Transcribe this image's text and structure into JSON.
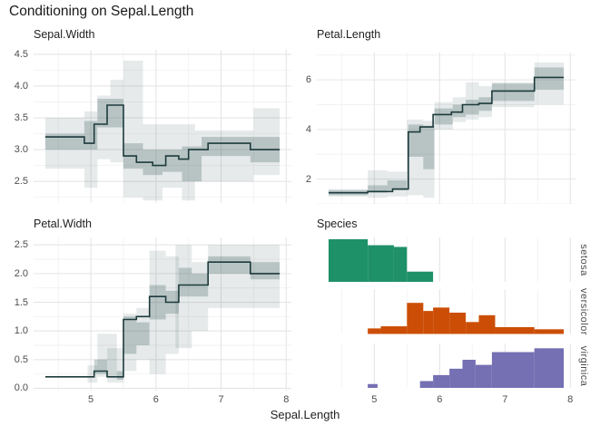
{
  "title": "Conditioning on Sepal.Length",
  "x_axis": {
    "label": "Sepal.Length",
    "domain": [
      4.12,
      8.08
    ],
    "ticks": [
      5,
      6,
      7,
      8
    ],
    "tick_labels": [
      "5",
      "6",
      "7",
      "8"
    ],
    "minor": [
      4.5,
      5.5,
      6.5,
      7.5
    ]
  },
  "colors": {
    "step_line": "#1D3A3C",
    "band_fill": "#2F5353",
    "grid_major": "#E5E5E5",
    "grid_minor": "#F2F2F2",
    "setosa": "#1E9168",
    "versicolor": "#CC4E06",
    "virginica": "#7570B3",
    "title_text": "#1A1A1A",
    "tick_text": "#4D4D4D"
  },
  "chart_data": [
    {
      "id": "sepal-width",
      "title": "Sepal.Width",
      "type": "step-band",
      "y": {
        "domain": [
          2.16,
          4.57
        ],
        "ticks": [
          2.5,
          3.0,
          3.5,
          4.0,
          4.5
        ],
        "tick_labels": [
          "2.5",
          "3.0",
          "3.5",
          "4.0",
          "4.5"
        ],
        "minor": [
          2.25,
          2.75,
          3.25,
          3.75,
          4.25
        ]
      },
      "steps": {
        "breaks": [
          4.3,
          4.9,
          5.05,
          5.25,
          5.5,
          5.7,
          5.95,
          6.15,
          6.35,
          6.5,
          6.8,
          7.45,
          7.9
        ],
        "values": [
          3.2,
          3.1,
          3.4,
          3.7,
          2.9,
          2.8,
          2.75,
          2.9,
          2.85,
          3.0,
          3.1,
          3.0
        ]
      },
      "bands_light": [
        [
          4.3,
          4.9,
          2.7,
          3.5
        ],
        [
          4.9,
          5.1,
          2.4,
          3.6
        ],
        [
          5.1,
          5.3,
          2.85,
          3.85
        ],
        [
          5.3,
          5.5,
          2.8,
          4.1
        ],
        [
          5.5,
          5.8,
          2.25,
          4.4
        ],
        [
          5.8,
          6.1,
          2.2,
          3.4
        ],
        [
          6.1,
          6.4,
          2.4,
          3.4
        ],
        [
          6.4,
          6.6,
          2.2,
          3.4
        ],
        [
          6.6,
          6.9,
          2.5,
          3.3
        ],
        [
          6.9,
          7.5,
          2.5,
          3.3
        ],
        [
          7.5,
          7.9,
          2.6,
          3.65
        ]
      ],
      "bands_dark": [
        [
          4.3,
          4.9,
          3.0,
          3.25
        ],
        [
          4.9,
          5.1,
          3.0,
          3.45
        ],
        [
          5.1,
          5.5,
          3.35,
          3.8
        ],
        [
          5.5,
          5.8,
          2.7,
          3.1
        ],
        [
          5.8,
          6.1,
          2.6,
          3.0
        ],
        [
          6.1,
          6.4,
          2.65,
          3.0
        ],
        [
          6.4,
          6.7,
          2.5,
          3.05
        ],
        [
          6.7,
          7.45,
          2.9,
          3.2
        ],
        [
          7.45,
          7.9,
          2.8,
          3.2
        ]
      ]
    },
    {
      "id": "petal-length",
      "title": "Petal.Length",
      "type": "step-band",
      "y": {
        "domain": [
          1.0,
          7.1
        ],
        "ticks": [
          2,
          4,
          6
        ],
        "tick_labels": [
          "2",
          "4",
          "6"
        ],
        "minor": [
          1,
          3,
          5,
          7
        ]
      },
      "steps": {
        "breaks": [
          4.3,
          4.9,
          5.28,
          5.52,
          5.7,
          5.9,
          6.18,
          6.35,
          6.6,
          6.8,
          7.45,
          7.9
        ],
        "values": [
          1.45,
          1.5,
          1.6,
          3.9,
          4.1,
          4.6,
          4.7,
          5.0,
          5.05,
          5.55,
          6.1
        ]
      },
      "bands_light": [
        [
          4.3,
          4.9,
          1.3,
          1.6
        ],
        [
          4.9,
          5.2,
          1.25,
          2.35
        ],
        [
          5.2,
          5.5,
          1.3,
          2.3
        ],
        [
          5.5,
          5.75,
          1.35,
          4.4
        ],
        [
          5.75,
          5.92,
          1.25,
          4.35
        ],
        [
          5.92,
          6.2,
          4.0,
          5.1
        ],
        [
          6.2,
          6.4,
          4.3,
          5.3
        ],
        [
          6.4,
          6.6,
          4.4,
          5.9
        ],
        [
          6.6,
          6.8,
          4.5,
          5.75
        ],
        [
          6.8,
          7.45,
          4.9,
          5.9
        ],
        [
          7.45,
          7.9,
          5.0,
          6.7
        ]
      ],
      "bands_dark": [
        [
          4.3,
          4.9,
          1.35,
          1.55
        ],
        [
          4.9,
          5.2,
          1.45,
          1.75
        ],
        [
          5.2,
          5.5,
          1.55,
          1.95
        ],
        [
          5.52,
          5.75,
          2.9,
          4.2
        ],
        [
          5.75,
          5.92,
          2.4,
          4.15
        ],
        [
          5.92,
          6.2,
          4.2,
          4.85
        ],
        [
          6.2,
          6.4,
          4.5,
          5.0
        ],
        [
          6.4,
          6.6,
          4.6,
          5.2
        ],
        [
          6.6,
          6.8,
          4.75,
          5.3
        ],
        [
          6.8,
          7.45,
          5.15,
          5.85
        ],
        [
          7.45,
          7.9,
          5.6,
          6.5
        ]
      ]
    },
    {
      "id": "petal-width",
      "title": "Petal.Width",
      "type": "step-band",
      "y": {
        "domain": [
          -0.04,
          2.63
        ],
        "ticks": [
          0.0,
          0.5,
          1.0,
          1.5,
          2.0,
          2.5
        ],
        "tick_labels": [
          "0.0",
          "0.5",
          "1.0",
          "1.5",
          "2.0",
          "2.5"
        ],
        "minor": [
          0.25,
          0.75,
          1.25,
          1.75,
          2.25
        ]
      },
      "steps": {
        "breaks": [
          4.3,
          5.05,
          5.25,
          5.5,
          5.7,
          5.9,
          6.15,
          6.35,
          6.8,
          7.45,
          7.9
        ],
        "values": [
          0.2,
          0.3,
          0.2,
          1.2,
          1.25,
          1.6,
          1.5,
          1.8,
          2.2,
          2.0
        ]
      },
      "bands_light": [
        [
          4.95,
          5.1,
          0.1,
          0.4
        ],
        [
          5.1,
          5.4,
          0.2,
          0.95
        ],
        [
          5.25,
          5.5,
          0.1,
          0.7
        ],
        [
          5.5,
          5.7,
          0.3,
          1.3
        ],
        [
          5.7,
          5.9,
          0.5,
          1.4
        ],
        [
          5.9,
          6.15,
          0.25,
          2.4
        ],
        [
          6.15,
          6.35,
          0.6,
          2.3
        ],
        [
          6.3,
          6.55,
          0.7,
          2.5
        ],
        [
          6.55,
          6.8,
          1.0,
          2.2
        ],
        [
          6.8,
          7.45,
          1.4,
          2.5
        ],
        [
          7.45,
          7.9,
          1.4,
          2.5
        ]
      ],
      "bands_dark": [
        [
          5.05,
          5.25,
          0.25,
          0.5
        ],
        [
          5.4,
          5.5,
          0.15,
          0.3
        ],
        [
          5.5,
          5.7,
          0.6,
          1.25
        ],
        [
          5.7,
          5.9,
          0.75,
          1.15
        ],
        [
          5.9,
          6.15,
          1.2,
          1.8
        ],
        [
          6.15,
          6.35,
          1.3,
          1.7
        ],
        [
          6.35,
          6.55,
          1.6,
          2.1
        ],
        [
          6.55,
          6.8,
          1.6,
          2.0
        ],
        [
          6.8,
          7.45,
          2.0,
          2.3
        ],
        [
          7.45,
          7.9,
          1.9,
          2.2
        ]
      ]
    },
    {
      "id": "species",
      "title": "Species",
      "type": "histogram-facets",
      "facets": [
        {
          "label": "setosa",
          "color_key": "setosa",
          "bars": [
            [
              4.3,
              4.9,
              1.0
            ],
            [
              4.9,
              5.3,
              0.86
            ],
            [
              5.3,
              5.5,
              0.82
            ],
            [
              5.5,
              5.9,
              0.24
            ]
          ]
        },
        {
          "label": "versicolor",
          "color_key": "versicolor",
          "bars": [
            [
              4.9,
              5.1,
              0.13
            ],
            [
              5.1,
              5.5,
              0.18
            ],
            [
              5.5,
              5.75,
              0.73
            ],
            [
              5.75,
              5.9,
              0.54
            ],
            [
              5.9,
              6.15,
              0.62
            ],
            [
              6.15,
              6.4,
              0.5
            ],
            [
              6.4,
              6.6,
              0.28
            ],
            [
              6.6,
              6.85,
              0.44
            ],
            [
              6.85,
              7.45,
              0.16
            ],
            [
              7.45,
              7.9,
              0.11
            ]
          ]
        },
        {
          "label": "virginica",
          "color_key": "virginica",
          "bars": [
            [
              4.9,
              5.05,
              0.09
            ],
            [
              5.7,
              5.9,
              0.16
            ],
            [
              5.9,
              6.15,
              0.3
            ],
            [
              6.15,
              6.35,
              0.45
            ],
            [
              6.35,
              6.55,
              0.66
            ],
            [
              6.55,
              6.8,
              0.54
            ],
            [
              6.8,
              7.45,
              0.84
            ],
            [
              7.45,
              7.9,
              0.93
            ]
          ]
        }
      ]
    }
  ]
}
